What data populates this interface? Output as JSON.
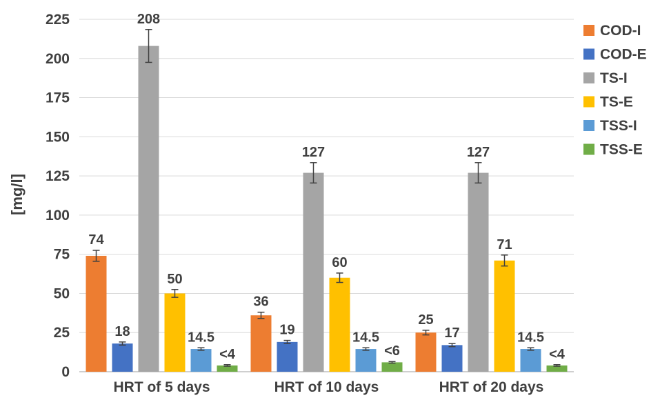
{
  "chart_data": {
    "type": "bar",
    "title": "",
    "xlabel": "",
    "ylabel": "[mg/l]",
    "ylim": [
      0,
      225
    ],
    "yticks": [
      0,
      25,
      50,
      75,
      100,
      125,
      150,
      175,
      200,
      225
    ],
    "grid": true,
    "legend_position": "right",
    "categories": [
      "HRT of 5 days",
      "HRT of 10 days",
      "HRT of 20 days"
    ],
    "series": [
      {
        "name": "COD-I",
        "color": "#ED7D31",
        "values": [
          74,
          36,
          25
        ],
        "labels": [
          "74",
          "36",
          "25"
        ],
        "errors": [
          3.5,
          2,
          1.5
        ]
      },
      {
        "name": "COD-E",
        "color": "#4472C4",
        "values": [
          18,
          19,
          17
        ],
        "labels": [
          "18",
          "19",
          "17"
        ],
        "errors": [
          1,
          1,
          1
        ]
      },
      {
        "name": "TS-I",
        "color": "#A5A5A5",
        "values": [
          208,
          127,
          127
        ],
        "labels": [
          "208",
          "127",
          "127"
        ],
        "errors": [
          10.5,
          6.5,
          6.5
        ]
      },
      {
        "name": "TS-E",
        "color": "#FFC000",
        "values": [
          50,
          60,
          71
        ],
        "labels": [
          "50",
          "60",
          "71"
        ],
        "errors": [
          2.5,
          3,
          3.5
        ]
      },
      {
        "name": "TSS-I",
        "color": "#5B9BD5",
        "values": [
          14.5,
          14.5,
          14.5
        ],
        "labels": [
          "14.5",
          "14.5",
          "14.5"
        ],
        "errors": [
          0.8,
          0.8,
          0.8
        ]
      },
      {
        "name": "TSS-E",
        "color": "#70AD47",
        "values": [
          4,
          6,
          4
        ],
        "labels": [
          "<4",
          "<6",
          "<4"
        ],
        "errors": [
          0.5,
          0.5,
          0.5
        ]
      }
    ]
  }
}
